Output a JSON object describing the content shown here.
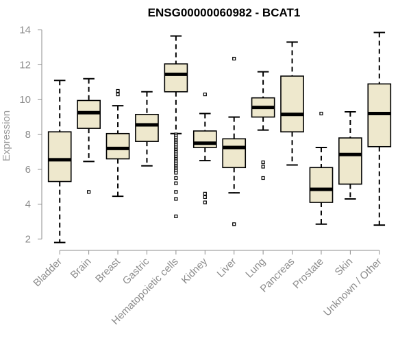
{
  "chart_data": {
    "type": "boxplot",
    "title": "ENSG00000060982 - BCAT1",
    "xlabel": "",
    "ylabel": "Expression",
    "ylim": [
      1.7,
      14.3
    ],
    "yticks": [
      2,
      4,
      6,
      8,
      10,
      12,
      14
    ],
    "colors": {
      "box_fill": "#EEE8CD",
      "box_stroke": "#000000",
      "axis": "#8c8c8c",
      "text_muted": "#8c8c8c"
    },
    "categories": [
      "Bladder",
      "Brain",
      "Breast",
      "Gastric",
      "Hematopoietic cells",
      "Kidney",
      "Liver",
      "Lung",
      "Pancreas",
      "Prostate",
      "Skin",
      "Unknown / Other"
    ],
    "series": [
      {
        "name": "Bladder",
        "whisker_low": 1.8,
        "q1": 5.3,
        "median": 6.55,
        "q3": 8.15,
        "whisker_high": 11.1,
        "outliers": []
      },
      {
        "name": "Brain",
        "whisker_low": 6.45,
        "q1": 8.35,
        "median": 9.25,
        "q3": 9.95,
        "whisker_high": 11.2,
        "outliers": [
          4.7
        ]
      },
      {
        "name": "Breast",
        "whisker_low": 4.45,
        "q1": 6.6,
        "median": 7.2,
        "q3": 8.05,
        "whisker_high": 9.65,
        "outliers": [
          10.3,
          10.5
        ]
      },
      {
        "name": "Gastric",
        "whisker_low": 6.2,
        "q1": 7.6,
        "median": 8.55,
        "q3": 9.15,
        "whisker_high": 10.45,
        "outliers": []
      },
      {
        "name": "Hematopoietic cells",
        "whisker_low": 8.05,
        "q1": 10.45,
        "median": 11.45,
        "q3": 12.05,
        "whisker_high": 13.65,
        "outliers": [
          8.0,
          7.9,
          7.8,
          7.7,
          7.6,
          7.5,
          7.4,
          7.3,
          7.2,
          7.1,
          7.0,
          6.9,
          6.8,
          6.7,
          6.6,
          6.5,
          6.4,
          6.3,
          6.2,
          6.1,
          6.0,
          5.9,
          5.8,
          5.5,
          5.2,
          4.7,
          4.3,
          3.3
        ]
      },
      {
        "name": "Kidney",
        "whisker_low": 6.5,
        "q1": 7.25,
        "median": 7.5,
        "q3": 8.2,
        "whisker_high": 9.2,
        "outliers": [
          10.3,
          4.6,
          4.4,
          4.1
        ]
      },
      {
        "name": "Liver",
        "whisker_low": 4.65,
        "q1": 6.1,
        "median": 7.25,
        "q3": 7.75,
        "whisker_high": 9.0,
        "outliers": [
          12.35,
          2.85
        ]
      },
      {
        "name": "Lung",
        "whisker_low": 8.25,
        "q1": 9.0,
        "median": 9.55,
        "q3": 10.1,
        "whisker_high": 11.6,
        "outliers": [
          6.4,
          6.15,
          5.5
        ]
      },
      {
        "name": "Pancreas",
        "whisker_low": 6.25,
        "q1": 8.15,
        "median": 9.15,
        "q3": 11.35,
        "whisker_high": 13.3,
        "outliers": []
      },
      {
        "name": "Prostate",
        "whisker_low": 2.85,
        "q1": 4.1,
        "median": 4.85,
        "q3": 6.1,
        "whisker_high": 7.25,
        "outliers": [
          9.2
        ]
      },
      {
        "name": "Skin",
        "whisker_low": 4.3,
        "q1": 5.15,
        "median": 6.85,
        "q3": 7.8,
        "whisker_high": 9.3,
        "outliers": []
      },
      {
        "name": "Unknown / Other",
        "whisker_low": 2.8,
        "q1": 7.3,
        "median": 9.2,
        "q3": 10.9,
        "whisker_high": 13.85,
        "outliers": []
      }
    ]
  }
}
